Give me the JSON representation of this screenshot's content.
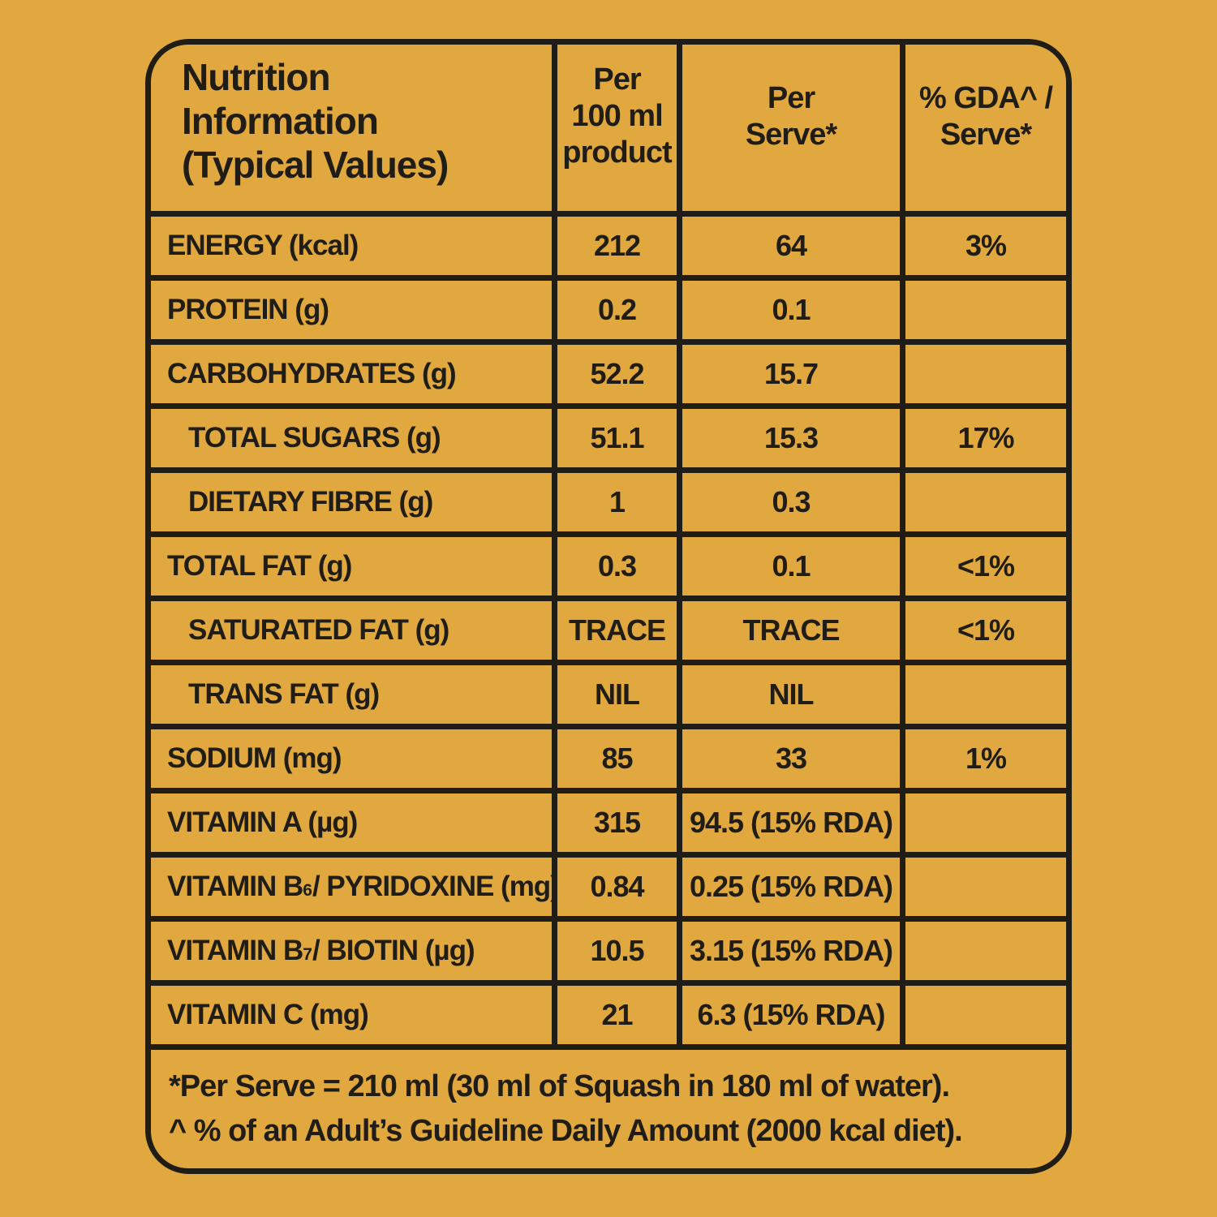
{
  "page": {
    "background_color": "#E0A83E",
    "ink_color": "#201D17"
  },
  "table": {
    "header": {
      "title": "Nutrition\nInformation\n(Typical Values)",
      "col_per_100ml": "Per\n100 ml\nproduct",
      "col_per_serve": "Per\nServe*",
      "col_gda": "% GDA^ /\nServe*"
    },
    "rows": [
      {
        "label_pre": "ENERGY (kcal)",
        "label_sub": "",
        "label_post": "",
        "indent": false,
        "per100": "212",
        "serve": "64",
        "gda": "3%"
      },
      {
        "label_pre": "PROTEIN (g)",
        "label_sub": "",
        "label_post": "",
        "indent": false,
        "per100": "0.2",
        "serve": "0.1",
        "gda": ""
      },
      {
        "label_pre": "CARBOHYDRATES (g)",
        "label_sub": "",
        "label_post": "",
        "indent": false,
        "per100": "52.2",
        "serve": "15.7",
        "gda": ""
      },
      {
        "label_pre": "TOTAL SUGARS (g)",
        "label_sub": "",
        "label_post": "",
        "indent": true,
        "per100": "51.1",
        "serve": "15.3",
        "gda": "17%"
      },
      {
        "label_pre": "DIETARY FIBRE (g)",
        "label_sub": "",
        "label_post": "",
        "indent": true,
        "per100": "1",
        "serve": "0.3",
        "gda": ""
      },
      {
        "label_pre": "TOTAL FAT (g)",
        "label_sub": "",
        "label_post": "",
        "indent": false,
        "per100": "0.3",
        "serve": "0.1",
        "gda": "<1%"
      },
      {
        "label_pre": "SATURATED FAT (g)",
        "label_sub": "",
        "label_post": "",
        "indent": true,
        "per100": "TRACE",
        "serve": "TRACE",
        "gda": "<1%"
      },
      {
        "label_pre": "TRANS FAT (g)",
        "label_sub": "",
        "label_post": "",
        "indent": true,
        "per100": "NIL",
        "serve": "NIL",
        "gda": ""
      },
      {
        "label_pre": "SODIUM (mg)",
        "label_sub": "",
        "label_post": "",
        "indent": false,
        "per100": "85",
        "serve": "33",
        "gda": "1%"
      },
      {
        "label_pre": "VITAMIN A (µg)",
        "label_sub": "",
        "label_post": "",
        "indent": false,
        "per100": "315",
        "serve": "94.5 (15% RDA)",
        "gda": ""
      },
      {
        "label_pre": "VITAMIN B",
        "label_sub": "6",
        "label_post": "/ PYRIDOXINE (mg)",
        "indent": false,
        "per100": "0.84",
        "serve": "0.25 (15% RDA)",
        "gda": ""
      },
      {
        "label_pre": "VITAMIN B",
        "label_sub": "7",
        "label_post": "/ BIOTIN (µg)",
        "indent": false,
        "per100": "10.5",
        "serve": "3.15 (15% RDA)",
        "gda": ""
      },
      {
        "label_pre": "VITAMIN C (mg)",
        "label_sub": "",
        "label_post": "",
        "indent": false,
        "per100": "21",
        "serve": "6.3 (15% RDA)",
        "gda": ""
      }
    ],
    "footnotes": {
      "line1": "*Per Serve = 210 ml (30 ml of Squash in 180 ml of water).",
      "line2": "^ % of an Adult’s Guideline Daily Amount (2000 kcal diet)."
    }
  }
}
